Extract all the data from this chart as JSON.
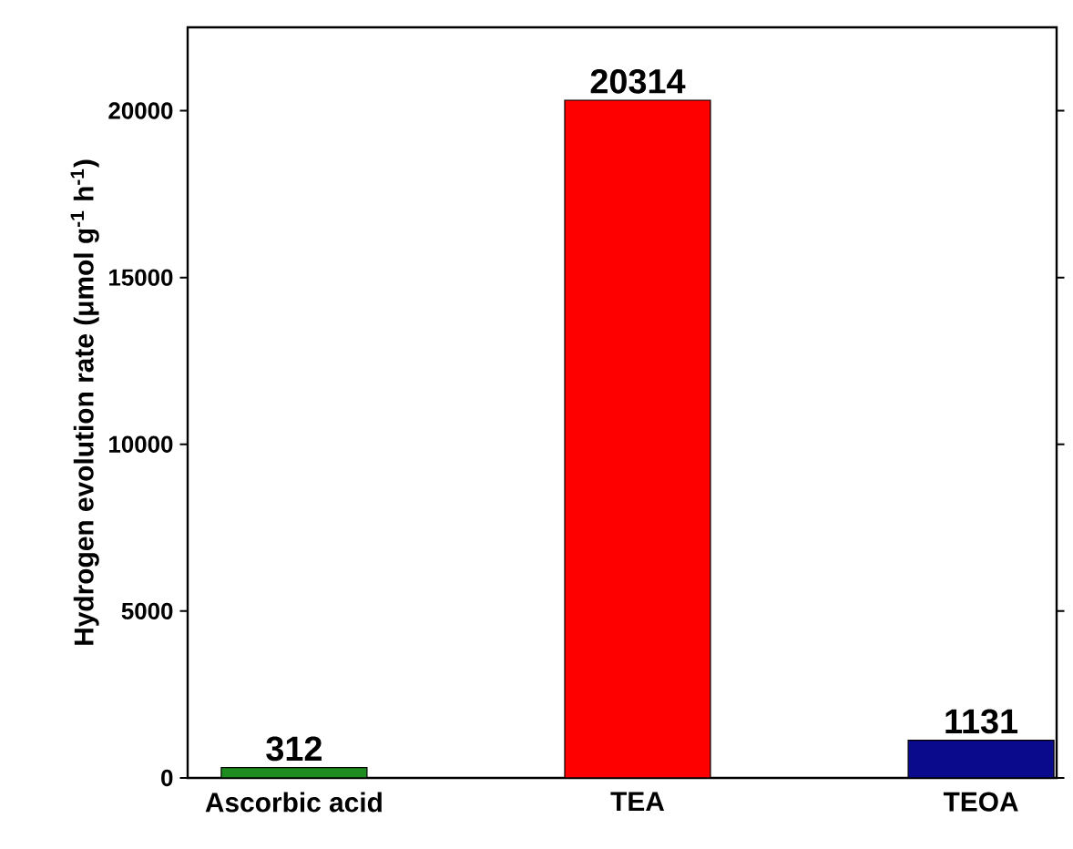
{
  "chart_data": {
    "type": "bar",
    "ylabel": "Hydrogen evolution rate (μmol g$^{-1}$ h$^{-1}$)",
    "categories": [
      "Ascorbic acid",
      "TEA",
      "TEOA"
    ],
    "values": [
      312,
      20314,
      1131
    ],
    "colors": [
      "#1e8c1e",
      "#ff0000",
      "#0a0a8c"
    ],
    "ylim": [
      0,
      22500
    ],
    "yticks": [
      0,
      5000,
      10000,
      15000,
      20000
    ],
    "data_labels": true
  }
}
